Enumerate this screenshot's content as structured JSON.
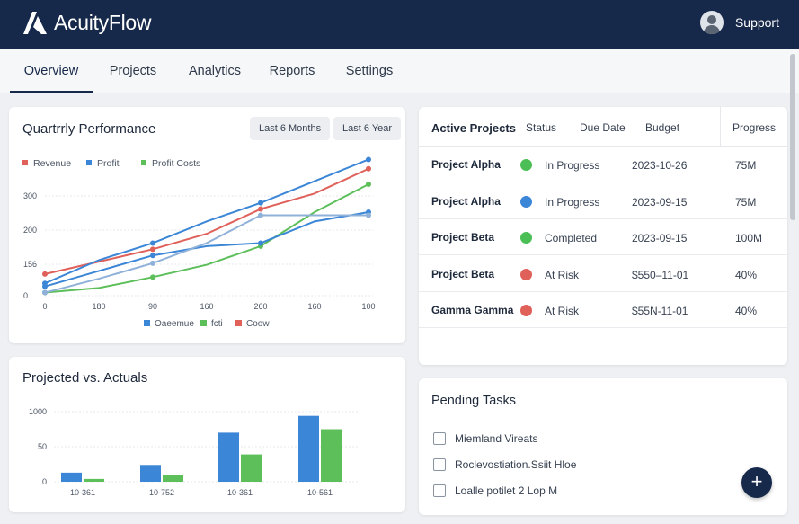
{
  "app": {
    "name": "AcuityFlow",
    "support_label": "Support"
  },
  "tabs": [
    "Overview",
    "Projects",
    "Analytics",
    "Reports",
    "Settings"
  ],
  "performance": {
    "title": "Quartrrly Performance",
    "filters": [
      "Last 6 Months",
      "Last 6 Year"
    ],
    "bottom_legend": [
      "Oaeemue",
      "fcti",
      "Coow"
    ]
  },
  "projected": {
    "title": "Projected vs. Actuals"
  },
  "projects_table": {
    "title": "Active Projects",
    "columns": [
      "Status",
      "Due Date",
      "Budget",
      "Progress"
    ],
    "rows": [
      {
        "name": "Project Alpha",
        "status": "In Progress",
        "status_color": "#4bbf55",
        "due": "2023-10-26",
        "progress": "75M"
      },
      {
        "name": "Project Alpha",
        "status": "In Progress",
        "status_color": "#3b86d6",
        "due": "2023-09-15",
        "progress": "75M"
      },
      {
        "name": "Project Beta",
        "status": "Completed",
        "status_color": "#4bbf55",
        "due": "2023-09-15",
        "progress": "100M"
      },
      {
        "name": "Project Beta",
        "status": "At Risk",
        "status_color": "#e0605a",
        "due": "$550–11-01",
        "progress": "40%"
      },
      {
        "name": "Gamma Gamma",
        "status": "At Risk",
        "status_color": "#e0605a",
        "due": "$55N-11-01",
        "progress": "40%"
      }
    ]
  },
  "tasks": {
    "title": "Pending Tasks",
    "items": [
      "Miemland Vireats",
      "Roclevostiation.Ssiit Hloe",
      "Loalle potilet 2 Lop M"
    ]
  },
  "fab_label": "+",
  "colors": {
    "navy": "#16294a",
    "blue": "#3b86d6",
    "green": "#5cbf5a",
    "red": "#e0605a",
    "lightblue": "#8fb1d9"
  },
  "chart_data": [
    {
      "type": "line",
      "title": "Quartrrly Performance",
      "legend": [
        "Revenue",
        "Profit",
        "Profit Costs"
      ],
      "x_ticks": [
        "0",
        "180",
        "90",
        "160",
        "260",
        "160",
        "100"
      ],
      "y_ticks": [
        "0",
        "156",
        "200",
        "300"
      ],
      "grid": true,
      "series": [
        {
          "name": "Revenue",
          "color": "#e0605a",
          "values": [
            70,
            110,
            150,
            200,
            280,
            330,
            410
          ]
        },
        {
          "name": "Profit",
          "color": "#3b86d6",
          "values": [
            40,
            115,
            170,
            240,
            300,
            370,
            440
          ]
        },
        {
          "name": "Profit Costs",
          "color": "#5cbf5a",
          "values": [
            10,
            25,
            60,
            100,
            160,
            270,
            360
          ]
        },
        {
          "color": "#3b86d6",
          "values": [
            30,
            80,
            130,
            160,
            170,
            240,
            270
          ]
        },
        {
          "color": "#8fb1d9",
          "values": [
            10,
            55,
            105,
            170,
            260,
            260,
            260
          ]
        }
      ],
      "ylim": [
        0,
        450
      ]
    },
    {
      "type": "bar",
      "title": "Projected vs. Actuals",
      "categories": [
        "10-361",
        "10-752",
        "10-361",
        "10-561"
      ],
      "y_ticks": [
        "0",
        "50",
        "1000"
      ],
      "ylim": [
        0,
        100
      ],
      "series": [
        {
          "color": "#3b86d6",
          "values": [
            13,
            24,
            70,
            94
          ]
        },
        {
          "color": "#5cbf5a",
          "values": [
            4,
            10,
            39,
            75
          ]
        }
      ]
    }
  ]
}
